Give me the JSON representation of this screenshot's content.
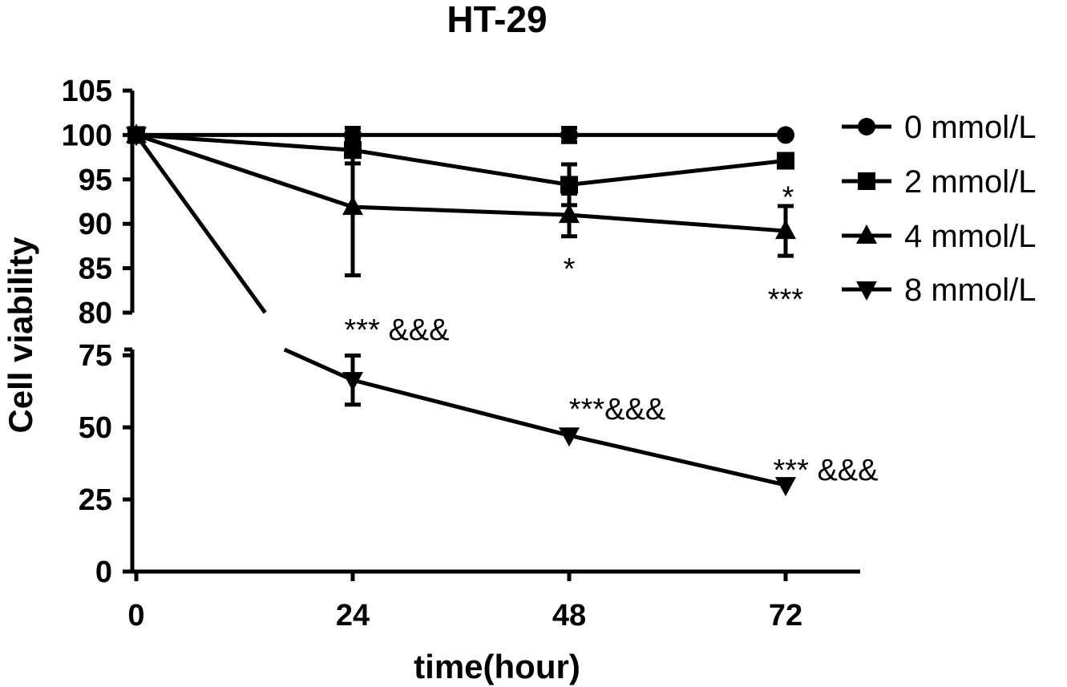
{
  "chart_data": {
    "type": "line",
    "title": "HT-29",
    "xlabel": "time(hour)",
    "ylabel": "Cell viability",
    "x": [
      0,
      24,
      48,
      72
    ],
    "x_tick_labels": [
      "0",
      "24",
      "48",
      "72"
    ],
    "y_axis_break": {
      "upper_segment": [
        80,
        105
      ],
      "lower_segment": [
        0,
        77
      ]
    },
    "y_tick_labels_upper": [
      "80",
      "85",
      "90",
      "95",
      "100",
      "105"
    ],
    "y_tick_labels_lower": [
      "0",
      "25",
      "50",
      "75"
    ],
    "y_ticks_upper": [
      80,
      85,
      90,
      95,
      100,
      105
    ],
    "y_ticks_lower": [
      0,
      25,
      50,
      75
    ],
    "legend_position": "right",
    "series": [
      {
        "name": "0 mmol/L",
        "marker": "circle",
        "values": [
          100,
          100,
          100,
          100
        ],
        "errors": [
          0,
          0.8,
          0.8,
          0
        ]
      },
      {
        "name": "2 mmol/L",
        "marker": "square",
        "values": [
          100,
          98.3,
          94.4,
          97.1
        ],
        "errors": [
          0,
          1.5,
          2.3,
          0
        ]
      },
      {
        "name": "4 mmol/L",
        "marker": "triangle-up",
        "values": [
          100,
          91.9,
          91.0,
          89.2
        ],
        "errors": [
          0,
          7.7,
          2.4,
          2.8
        ]
      },
      {
        "name": "8 mmol/L",
        "marker": "triangle-down",
        "values": [
          100,
          66.4,
          47.2,
          30.0
        ],
        "errors": [
          0,
          8.5,
          0,
          0
        ]
      }
    ],
    "annotations": [
      {
        "text": "*",
        "x": 48,
        "near_series": "4 mmol/L"
      },
      {
        "text": "*",
        "x": 72,
        "near_series": "2 mmol/L"
      },
      {
        "text": "***",
        "x": 72,
        "near_series": "4 mmol/L"
      },
      {
        "text": "*** &&&",
        "x": 24,
        "near_series": "8 mmol/L"
      },
      {
        "text": "***&&&",
        "x": 48,
        "near_series": "8 mmol/L"
      },
      {
        "text": "*** &&&",
        "x": 72,
        "near_series": "8 mmol/L"
      }
    ]
  }
}
